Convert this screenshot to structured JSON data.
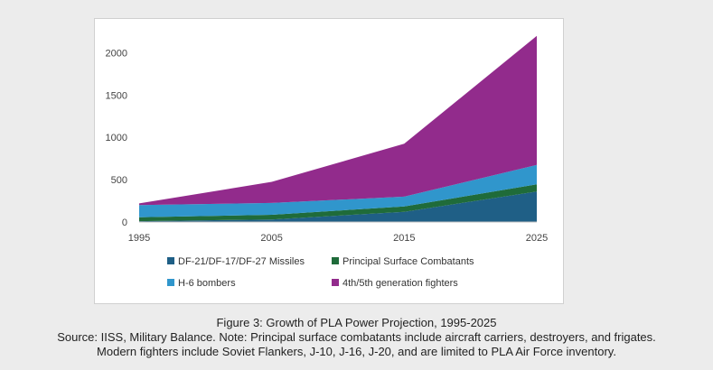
{
  "chart_data": {
    "type": "area",
    "stacked": true,
    "x": [
      1995,
      2005,
      2015,
      2025
    ],
    "ylim": [
      0,
      2250
    ],
    "yticks": [
      0,
      500,
      1000,
      1500,
      2000
    ],
    "xticks": [
      1995,
      2005,
      2015,
      2025
    ],
    "grid": false,
    "legend_position": "bottom",
    "series": [
      {
        "name": "DF-21/DF-17/DF-27 Missiles",
        "color": "#1f5f86",
        "values": [
          10,
          30,
          120,
          360
        ]
      },
      {
        "name": "Principal Surface Combatants",
        "color": "#1f6b3a",
        "values": [
          45,
          55,
          65,
          85
        ]
      },
      {
        "name": "H-6 bombers",
        "color": "#3096cc",
        "values": [
          145,
          140,
          115,
          230
        ]
      },
      {
        "name": "4th/5th generation fighters",
        "color": "#922b8c",
        "values": [
          20,
          250,
          625,
          1525
        ]
      }
    ]
  },
  "caption": {
    "line1": "Figure 3: Growth of PLA Power Projection, 1995-2025",
    "line2": "Source: IISS, Military Balance. Note: Principal surface combatants include aircraft carriers, destroyers, and frigates.",
    "line3": "Modern fighters include Soviet Flankers, J-10, J-16, J-20, and are limited to PLA Air Force inventory."
  }
}
